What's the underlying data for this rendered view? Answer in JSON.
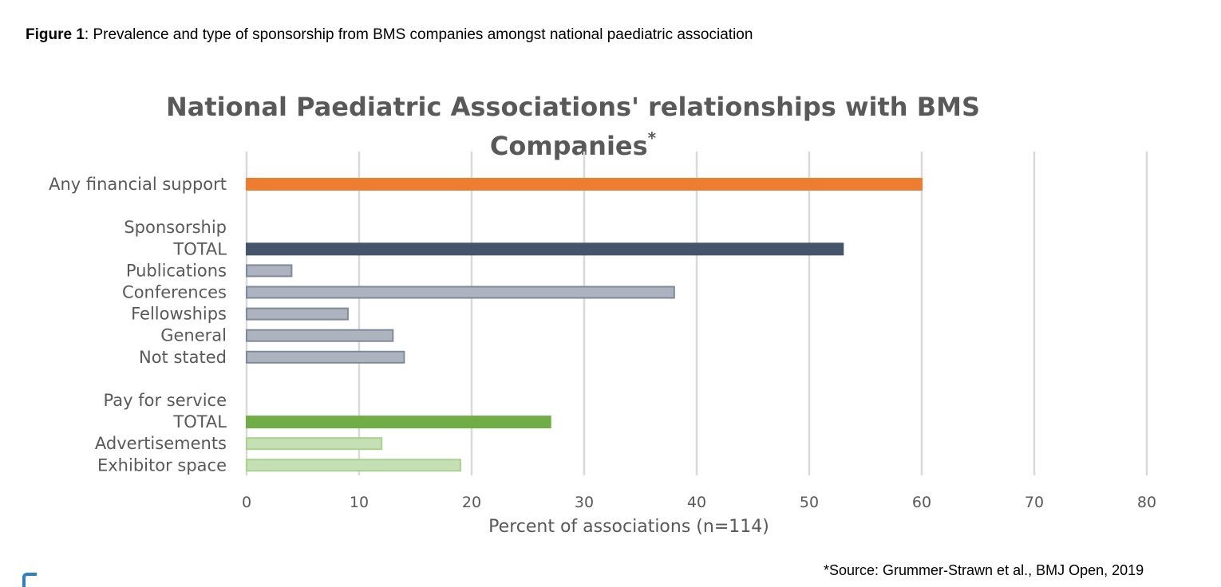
{
  "figure_caption": {
    "label": "Figure 1",
    "text": ": Prevalence and type of sponsorship from BMS companies amongst national paediatric association"
  },
  "source_note": "*Source: Grummer-Strawn et al., BMJ Open, 2019",
  "chart_data": {
    "type": "bar",
    "orientation": "horizontal",
    "title": "National Paediatric Associations' relationships with BMS Companies",
    "title_line1": "National Paediatric Associations' relationships with BMS",
    "title_line2": "Companies",
    "title_marker": "*",
    "xlabel": "Percent of associations (n=114)",
    "xlim": [
      0,
      80
    ],
    "xticks": [
      0,
      10,
      20,
      30,
      40,
      50,
      60,
      70,
      80
    ],
    "xtick_labels": [
      "0",
      "10",
      "20",
      "30",
      "40",
      "50",
      "60",
      "70",
      "80"
    ],
    "grid": "vertical",
    "legend": "none",
    "colors": {
      "orange": "#ed7d31",
      "navy": "#44546a",
      "gray_fill": "#adb4bf",
      "gray_edge": "#7f8a99",
      "green": "#70ad47",
      "light_green_fill": "#c5e0b4",
      "light_green_edge": "#a9d18e",
      "grid": "#d9d9d9",
      "text": "#595959"
    },
    "categories": [
      "Any financial support",
      "",
      "Sponsorship",
      "TOTAL",
      "Publications",
      "Conferences",
      "Fellowships",
      "General",
      "Not stated",
      "",
      "Pay for service",
      "TOTAL",
      "Advertisements",
      "Exhibitor space"
    ],
    "values": [
      60,
      null,
      null,
      53,
      4,
      38,
      9,
      13,
      14,
      null,
      null,
      27,
      12,
      19
    ],
    "bar_styles": [
      "orange",
      null,
      null,
      "navy",
      "gray",
      "gray",
      "gray",
      "gray",
      "gray",
      null,
      null,
      "green",
      "lightgreen",
      "lightgreen"
    ]
  }
}
